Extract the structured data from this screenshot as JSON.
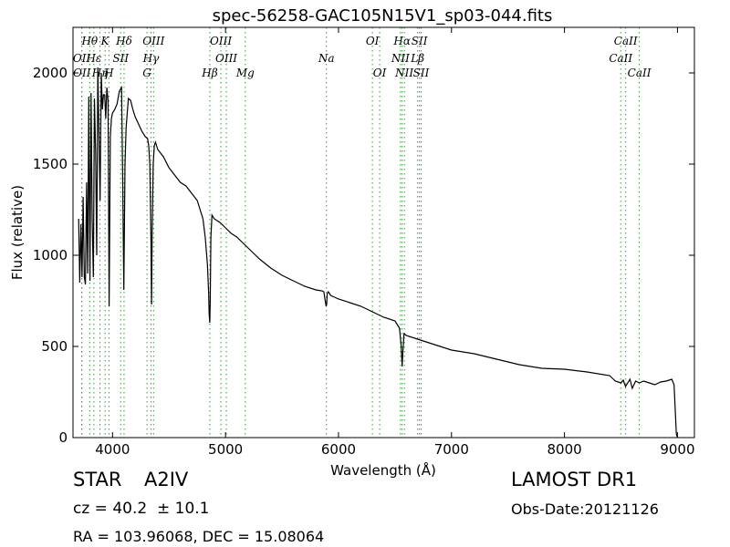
{
  "chart_data": {
    "type": "line",
    "title": "spec-56258-GAC105N15V1_sp03-044.fits",
    "xlabel": "Wavelength (Å)",
    "ylabel": "Flux (relative)",
    "xlim": [
      3650,
      9150
    ],
    "ylim": [
      0,
      2250
    ],
    "xticks": [
      4000,
      5000,
      6000,
      7000,
      8000,
      9000
    ],
    "yticks": [
      0,
      500,
      1000,
      1500,
      2000
    ],
    "grid": false,
    "series": [
      {
        "x": [
          3700,
          3710,
          3720,
          3730,
          3740,
          3750,
          3760,
          3770,
          3780,
          3790,
          3800,
          3810,
          3820,
          3830,
          3840,
          3850,
          3860,
          3870,
          3880,
          3890,
          3900,
          3910,
          3920,
          3930,
          3940,
          3950,
          3960,
          3970,
          3980,
          3990,
          4000,
          4020,
          4040,
          4060,
          4080,
          4090,
          4100,
          4110,
          4120,
          4140,
          4160,
          4180,
          4200,
          4230,
          4260,
          4290,
          4310,
          4320,
          4330,
          4340,
          4345,
          4350,
          4360,
          4370,
          4380,
          4400,
          4450,
          4500,
          4550,
          4600,
          4650,
          4700,
          4750,
          4800,
          4820,
          4840,
          4850,
          4855,
          4861,
          4865,
          4870,
          4880,
          4900,
          4950,
          5000,
          5050,
          5100,
          5150,
          5200,
          5300,
          5400,
          5500,
          5600,
          5700,
          5800,
          5850,
          5870,
          5880,
          5890,
          5895,
          5900,
          5910,
          5930,
          6000,
          6100,
          6200,
          6300,
          6400,
          6500,
          6540,
          6555,
          6563,
          6570,
          6580,
          6600,
          6700,
          6800,
          6900,
          7000,
          7200,
          7400,
          7600,
          7800,
          8000,
          8200,
          8400,
          8450,
          8500,
          8520,
          8540,
          8560,
          8580,
          8600,
          8630,
          8662,
          8700,
          8750,
          8800,
          8850,
          8900,
          8950,
          8970,
          8980,
          8990,
          9000
        ],
        "y": [
          1200,
          850,
          1170,
          880,
          1320,
          880,
          840,
          1400,
          900,
          1870,
          860,
          1890,
          1200,
          880,
          1860,
          1560,
          1000,
          2030,
          1650,
          1300,
          2000,
          1800,
          1880,
          1880,
          1750,
          1920,
          1850,
          720,
          1650,
          1750,
          1780,
          1800,
          1830,
          1900,
          1920,
          1400,
          810,
          1500,
          1700,
          1860,
          1850,
          1800,
          1760,
          1720,
          1680,
          1650,
          1640,
          1600,
          1500,
          1100,
          730,
          1100,
          1500,
          1600,
          1620,
          1580,
          1540,
          1480,
          1440,
          1400,
          1380,
          1340,
          1300,
          1200,
          1100,
          950,
          800,
          680,
          630,
          750,
          1100,
          1220,
          1200,
          1180,
          1150,
          1120,
          1100,
          1070,
          1040,
          980,
          930,
          890,
          860,
          830,
          810,
          805,
          800,
          760,
          720,
          730,
          790,
          800,
          780,
          760,
          740,
          720,
          690,
          660,
          640,
          600,
          500,
          390,
          470,
          570,
          560,
          540,
          520,
          500,
          480,
          460,
          430,
          400,
          380,
          375,
          360,
          340,
          310,
          300,
          315,
          280,
          300,
          320,
          270,
          310,
          300,
          310,
          300,
          290,
          305,
          310,
          320,
          290,
          150,
          20,
          0
        ]
      }
    ],
    "lines": [
      {
        "label": "Hθ",
        "x": 3798,
        "row": 1
      },
      {
        "label": "K",
        "x": 3934,
        "row": 1
      },
      {
        "label": "Hδ",
        "x": 4102,
        "row": 1
      },
      {
        "label": "OIII",
        "x": 4363,
        "row": 1
      },
      {
        "label": "OIII",
        "x": 4959,
        "row": 1
      },
      {
        "label": "OI",
        "x": 6300,
        "row": 1
      },
      {
        "label": "Hα",
        "x": 6563,
        "row": 1
      },
      {
        "label": "SII",
        "x": 6716,
        "row": 1
      },
      {
        "label": "CaII",
        "x": 8542,
        "row": 1
      },
      {
        "label": "OII",
        "x": 3727,
        "row": 2
      },
      {
        "label": "Hε",
        "x": 3835,
        "row": 2
      },
      {
        "label": "SII",
        "x": 4072,
        "row": 2
      },
      {
        "label": "Hγ",
        "x": 4340,
        "row": 2
      },
      {
        "label": "OIII",
        "x": 5007,
        "row": 2
      },
      {
        "label": "Na",
        "x": 5893,
        "row": 2
      },
      {
        "label": "NII",
        "x": 6548,
        "row": 2
      },
      {
        "label": "Lβ",
        "x": 6700,
        "row": 2
      },
      {
        "label": "CaII",
        "x": 8498,
        "row": 2
      },
      {
        "label": "OII",
        "x": 3729,
        "row": 3
      },
      {
        "label": "Hη",
        "x": 3889,
        "row": 3
      },
      {
        "label": "H",
        "x": 3968,
        "row": 3
      },
      {
        "label": "G",
        "x": 4305,
        "row": 3
      },
      {
        "label": "Hβ",
        "x": 4861,
        "row": 3
      },
      {
        "label": "Mg",
        "x": 5175,
        "row": 3
      },
      {
        "label": "OI",
        "x": 6364,
        "row": 3
      },
      {
        "label": "NII",
        "x": 6583,
        "row": 3
      },
      {
        "label": "SII",
        "x": 6731,
        "row": 3
      },
      {
        "label": "CaII",
        "x": 8662,
        "row": 3
      }
    ],
    "line_color": "#2ca02c"
  },
  "info": {
    "class_label": "STAR",
    "subclass": "A2IV",
    "survey": "LAMOST DR1",
    "cz": "cz = 40.2  ± 10.1",
    "obs_date": "Obs-Date:20121126",
    "coords": "RA = 103.96068, DEC = 15.08064"
  }
}
